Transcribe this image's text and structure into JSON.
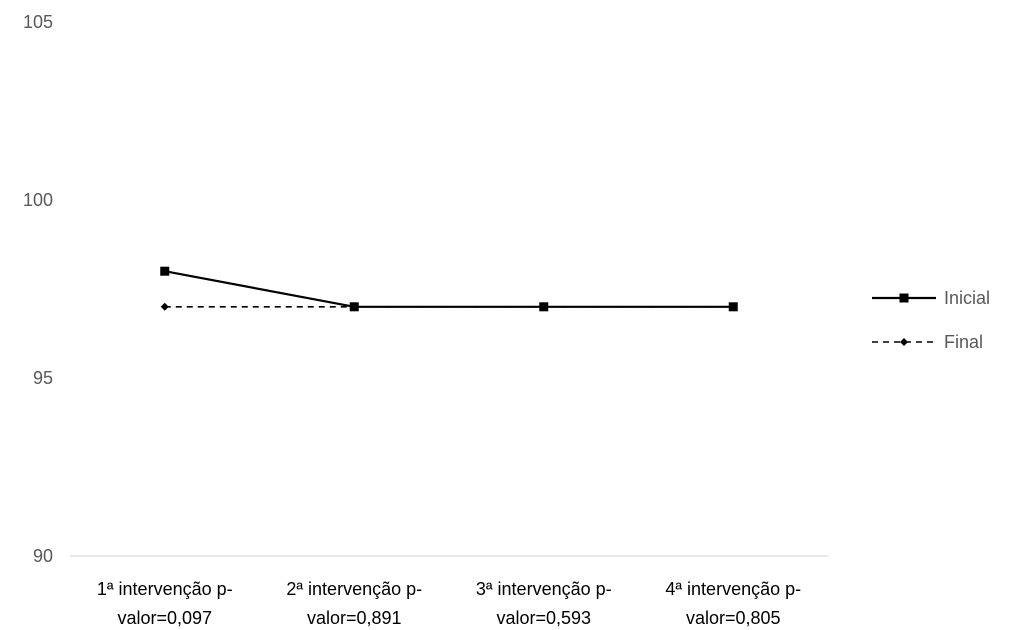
{
  "chart_data": {
    "type": "line",
    "categories": [
      [
        "1ª intervenção  p-",
        "valor=0,097"
      ],
      [
        "2ª intervenção  p-",
        "valor=0,891"
      ],
      [
        "3ª intervenção  p-",
        "valor=0,593"
      ],
      [
        "4ª intervenção  p-",
        "valor=0,805"
      ]
    ],
    "series": [
      {
        "name": "Inicial",
        "values": [
          98,
          97,
          97,
          97
        ],
        "color": "#000000",
        "line_style": "solid",
        "marker": "square"
      },
      {
        "name": "Final",
        "values": [
          97,
          97,
          97,
          97
        ],
        "color": "#000000",
        "line_style": "dashed",
        "marker": "diamond"
      }
    ],
    "ylim": [
      90,
      105
    ],
    "yticks": [
      "90",
      "95",
      "100",
      "105"
    ],
    "grid": false,
    "legend_position": "right"
  }
}
